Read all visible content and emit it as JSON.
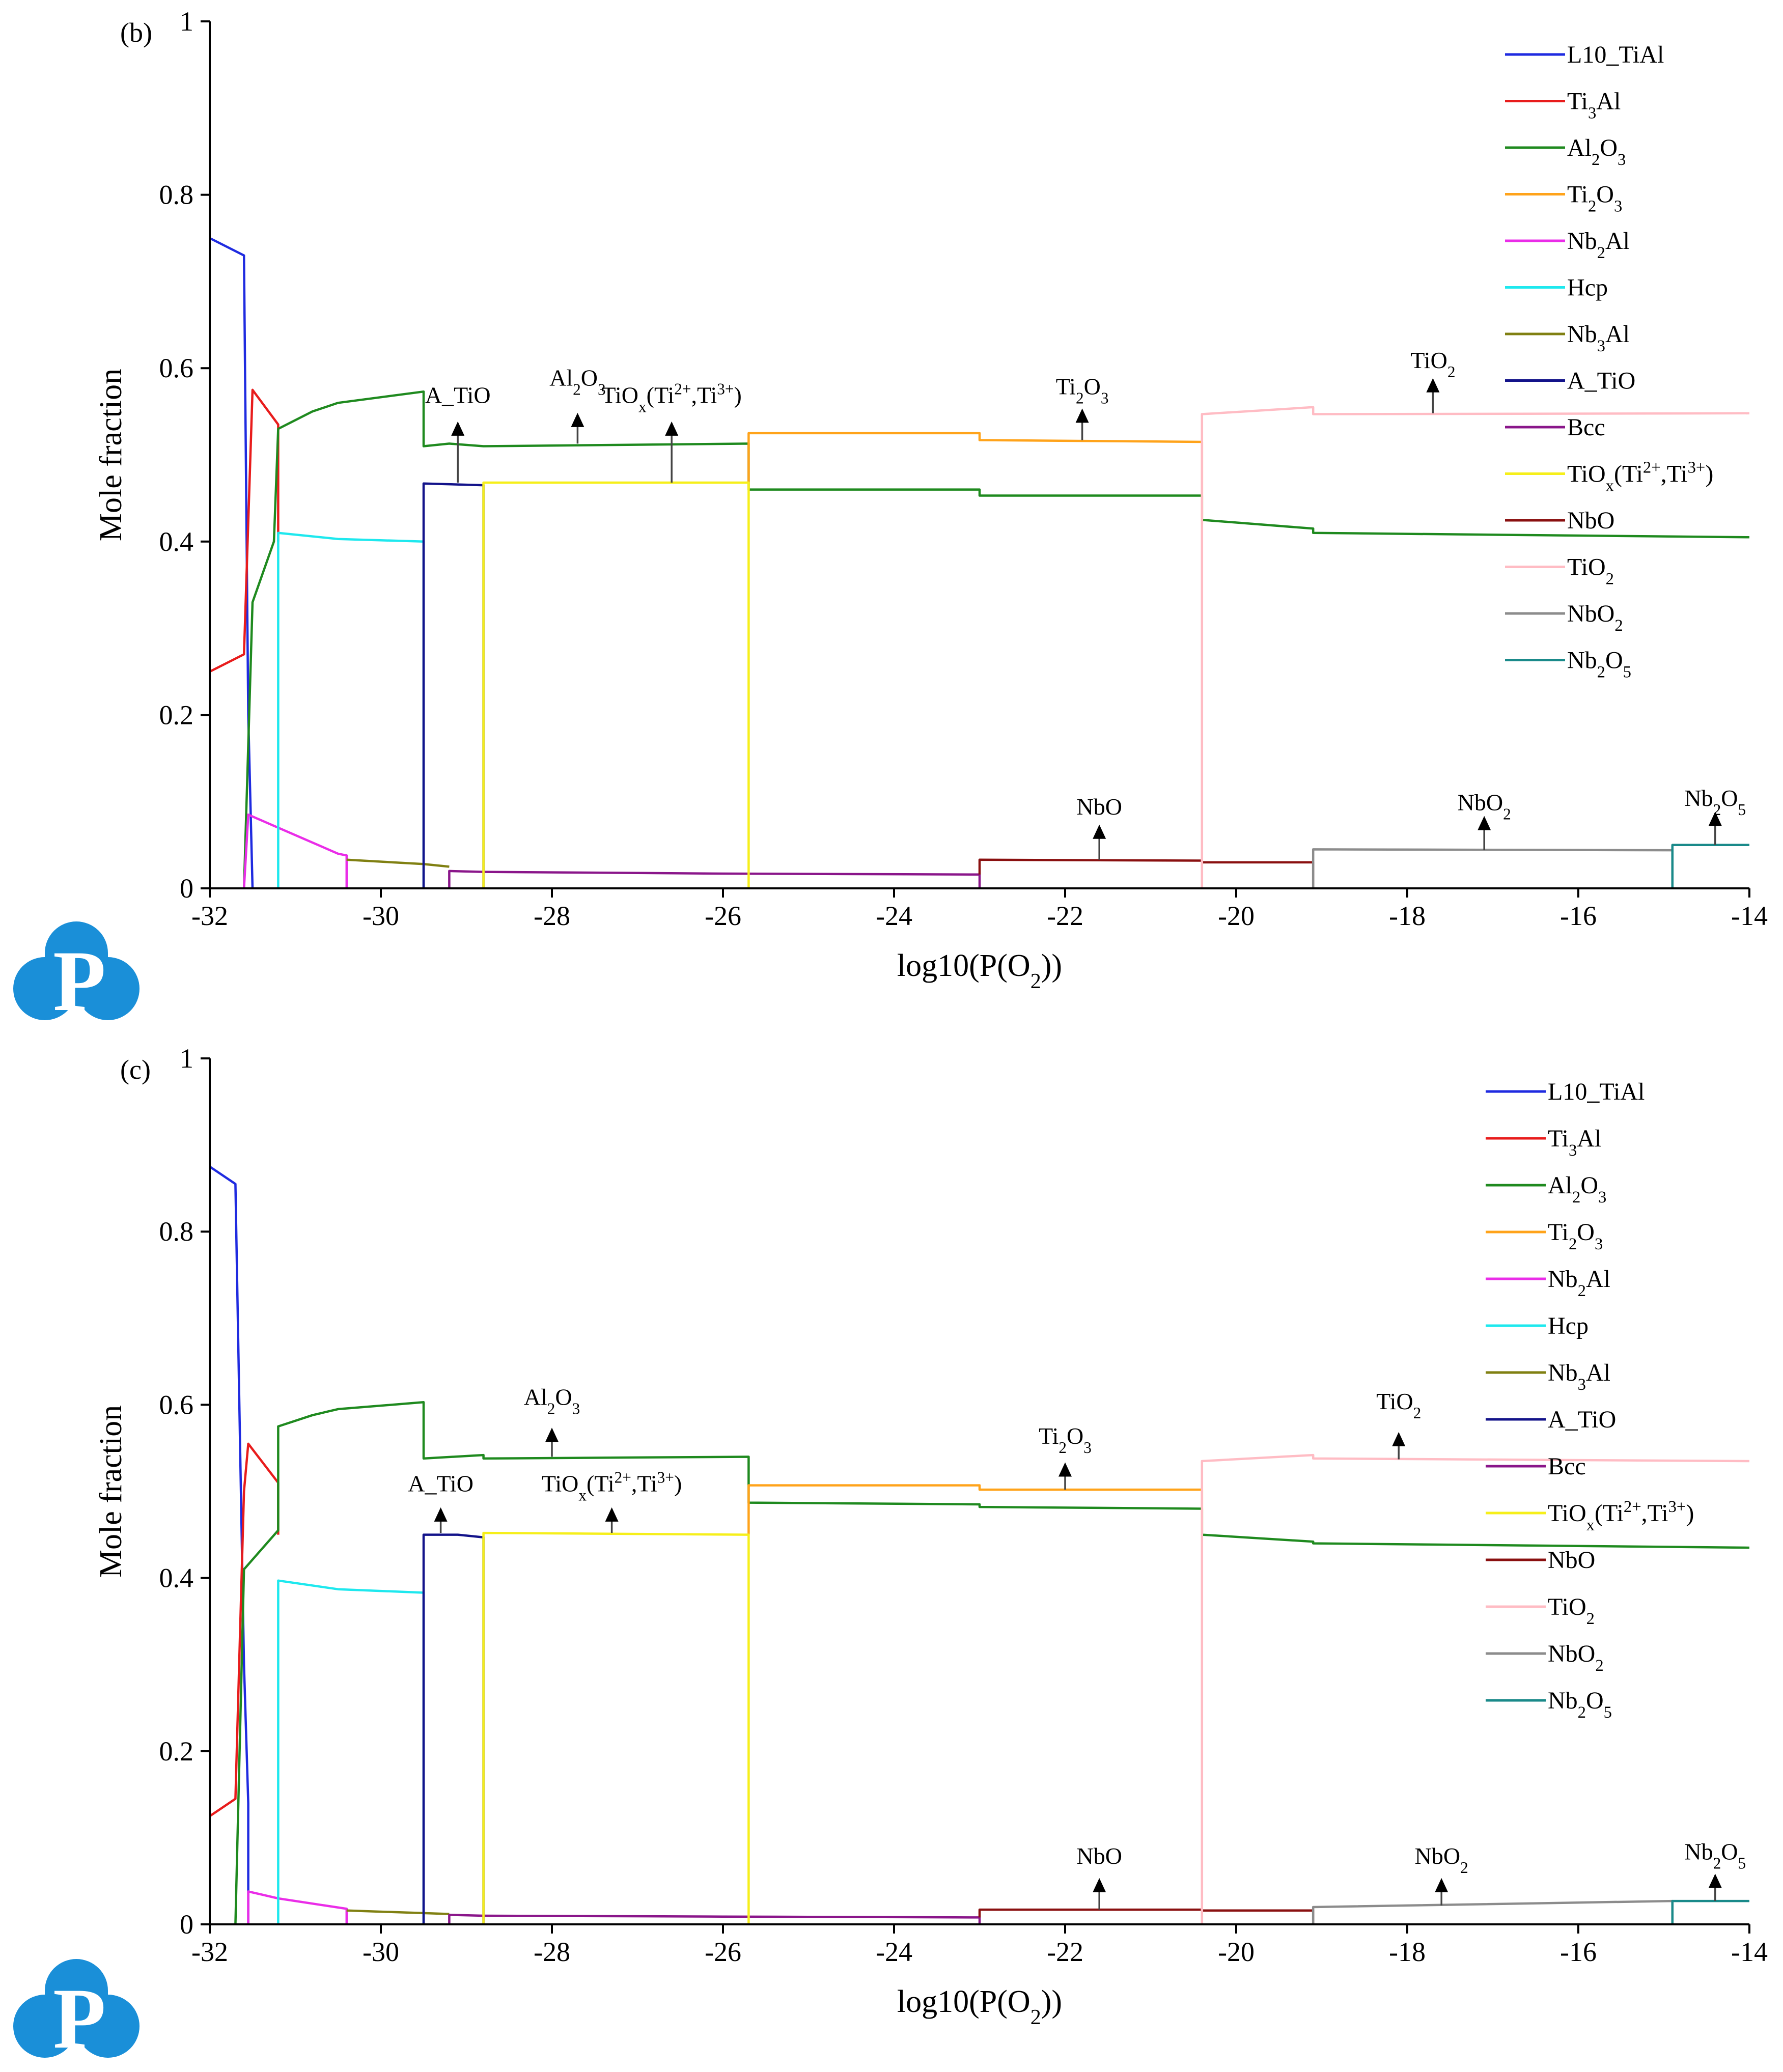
{
  "chart_data": [
    {
      "type": "line",
      "panel_label": "(b)",
      "xlabel": "log10(P(O₂))",
      "ylabel": "Mole fraction",
      "xlim": [
        -32,
        -14
      ],
      "ylim": [
        0,
        1
      ],
      "xticks": [
        "-32",
        "-30",
        "-28",
        "-26",
        "-24",
        "-22",
        "-20",
        "-18",
        "-16",
        "-14"
      ],
      "yticks": [
        "0",
        "0.2",
        "0.4",
        "0.6",
        "0.8",
        "1"
      ],
      "legend_position": "top-right",
      "series": [
        {
          "name": "L10_TiAl",
          "color": "#1f2be0",
          "points": [
            [
              -32,
              0.75
            ],
            [
              -31.6,
              0.73
            ],
            [
              -31.55,
              0.2
            ],
            [
              -31.5,
              0
            ]
          ]
        },
        {
          "name": "Ti₃Al",
          "color": "#e81c1c",
          "points": [
            [
              -32,
              0.25
            ],
            [
              -31.6,
              0.27
            ],
            [
              -31.5,
              0.575
            ],
            [
              -31.2,
              0.535
            ],
            [
              -31.2,
              0.4
            ]
          ]
        },
        {
          "name": "Al₂O₃",
          "color": "#1f8a1f",
          "points": [
            [
              -31.6,
              0
            ],
            [
              -31.5,
              0.33
            ],
            [
              -31.25,
              0.4
            ],
            [
              -31.2,
              0.53
            ],
            [
              -30.8,
              0.55
            ],
            [
              -30.5,
              0.56
            ],
            [
              -29.5,
              0.573
            ],
            [
              -29.5,
              0.51
            ],
            [
              -29.2,
              0.513
            ],
            [
              -28.8,
              0.51
            ],
            [
              -25.7,
              0.513
            ],
            [
              -25.7,
              0.46
            ],
            [
              -23,
              0.46
            ],
            [
              -23,
              0.453
            ],
            [
              -20.4,
              0.453
            ],
            [
              -20.4,
              0.425
            ],
            [
              -19.1,
              0.415
            ],
            [
              -19.1,
              0.41
            ],
            [
              -14,
              0.405
            ]
          ]
        },
        {
          "name": "Ti₂O₃",
          "color": "#ffa31a",
          "points": [
            [
              -25.7,
              0.46
            ],
            [
              -25.7,
              0.525
            ],
            [
              -23,
              0.525
            ],
            [
              -23,
              0.517
            ],
            [
              -20.4,
              0.515
            ],
            [
              -20.4,
              0.42
            ]
          ]
        },
        {
          "name": "Nb₂Al",
          "color": "#ea2de8",
          "points": [
            [
              -31.6,
              0
            ],
            [
              -31.55,
              0.085
            ],
            [
              -31.2,
              0.07
            ],
            [
              -30.5,
              0.04
            ],
            [
              -30.4,
              0.038
            ],
            [
              -30.4,
              0
            ]
          ]
        },
        {
          "name": "Hcp",
          "color": "#1ee8ee",
          "points": [
            [
              -31.2,
              0
            ],
            [
              -31.2,
              0.41
            ],
            [
              -30.5,
              0.403
            ],
            [
              -29.5,
              0.4
            ],
            [
              -29.5,
              0
            ]
          ]
        },
        {
          "name": "Nb₃Al",
          "color": "#808012",
          "points": [
            [
              -30.4,
              0.033
            ],
            [
              -29.5,
              0.028
            ],
            [
              -29.2,
              0.025
            ]
          ]
        },
        {
          "name": "A_TiO",
          "color": "#13138a",
          "points": [
            [
              -29.5,
              0
            ],
            [
              -29.5,
              0.467
            ],
            [
              -28.8,
              0.465
            ],
            [
              -28.8,
              0
            ]
          ]
        },
        {
          "name": "Bcc",
          "color": "#8a168a",
          "points": [
            [
              -29.2,
              0
            ],
            [
              -29.2,
              0.02
            ],
            [
              -28.8,
              0.019
            ],
            [
              -26,
              0.017
            ],
            [
              -23,
              0.016
            ],
            [
              -23,
              0
            ]
          ]
        },
        {
          "name": "TiOₓ(Ti²⁺,Ti³⁺)",
          "color": "#f6ef1a",
          "points": [
            [
              -28.8,
              0
            ],
            [
              -28.8,
              0.468
            ],
            [
              -25.7,
              0.468
            ],
            [
              -25.7,
              0
            ]
          ]
        },
        {
          "name": "NbO",
          "color": "#8a1010",
          "points": [
            [
              -23,
              0.016
            ],
            [
              -23,
              0.033
            ],
            [
              -20.4,
              0.032
            ],
            [
              -20.4,
              0.03
            ],
            [
              -19.1,
              0.03
            ],
            [
              -19.1,
              0
            ]
          ]
        },
        {
          "name": "TiO₂",
          "color": "#ffbcc4",
          "points": [
            [
              -20.4,
              0
            ],
            [
              -20.4,
              0.547
            ],
            [
              -19.1,
              0.555
            ],
            [
              -19.1,
              0.547
            ],
            [
              -14,
              0.548
            ]
          ]
        },
        {
          "name": "NbO₂",
          "color": "#8c8c8c",
          "points": [
            [
              -19.1,
              0
            ],
            [
              -19.1,
              0.045
            ],
            [
              -14.9,
              0.044
            ],
            [
              -14.9,
              0
            ]
          ]
        },
        {
          "name": "Nb₂O₅",
          "color": "#1a8a8a",
          "points": [
            [
              -14.9,
              0
            ],
            [
              -14.9,
              0.05
            ],
            [
              -14,
              0.05
            ]
          ]
        }
      ],
      "annotations": [
        {
          "text": "A_TiO",
          "x": -29.1,
          "y": 0.56,
          "arrow_from": 0.468,
          "arrow_to": 0.535
        },
        {
          "text": "Al₂O₃",
          "x": -27.7,
          "y": 0.58,
          "arrow_from": 0.513,
          "arrow_to": 0.545
        },
        {
          "text": "TiOₓ(Ti²⁺,Ti³⁺)",
          "x": -26.6,
          "y": 0.56,
          "arrow_from": 0.468,
          "arrow_to": 0.535
        },
        {
          "text": "Ti₂O₃",
          "x": -21.8,
          "y": 0.57,
          "arrow_from": 0.517,
          "arrow_to": 0.55
        },
        {
          "text": "TiO₂",
          "x": -17.7,
          "y": 0.6,
          "arrow_from": 0.548,
          "arrow_to": 0.585
        },
        {
          "text": "NbO",
          "x": -21.6,
          "y": 0.085,
          "arrow_from": 0.033,
          "arrow_to": 0.07
        },
        {
          "text": "NbO₂",
          "x": -17.1,
          "y": 0.09,
          "arrow_from": 0.044,
          "arrow_to": 0.08
        },
        {
          "text": "Nb₂O₅",
          "x": -14.4,
          "y": 0.095,
          "arrow_from": 0.05,
          "arrow_to": 0.085
        }
      ]
    },
    {
      "type": "line",
      "panel_label": "(c)",
      "xlabel": "log10(P(O₂))",
      "ylabel": "Mole fraction",
      "xlim": [
        -32,
        -14
      ],
      "ylim": [
        0,
        1
      ],
      "xticks": [
        "-32",
        "-30",
        "-28",
        "-26",
        "-24",
        "-22",
        "-20",
        "-18",
        "-16",
        "-14"
      ],
      "yticks": [
        "0",
        "0.2",
        "0.4",
        "0.6",
        "0.8",
        "1"
      ],
      "legend_position": "top-right",
      "series": [
        {
          "name": "L10_TiAl",
          "color": "#1f2be0",
          "points": [
            [
              -32,
              0.875
            ],
            [
              -31.7,
              0.855
            ],
            [
              -31.6,
              0.3
            ],
            [
              -31.55,
              0.14
            ],
            [
              -31.55,
              0
            ]
          ]
        },
        {
          "name": "Ti₃Al",
          "color": "#e81c1c",
          "points": [
            [
              -32,
              0.125
            ],
            [
              -31.7,
              0.145
            ],
            [
              -31.6,
              0.5
            ],
            [
              -31.55,
              0.555
            ],
            [
              -31.2,
              0.51
            ],
            [
              -31.2,
              0.45
            ]
          ]
        },
        {
          "name": "Al₂O₃",
          "color": "#1f8a1f",
          "points": [
            [
              -31.7,
              0
            ],
            [
              -31.6,
              0.41
            ],
            [
              -31.2,
              0.455
            ],
            [
              -31.2,
              0.575
            ],
            [
              -30.8,
              0.588
            ],
            [
              -30.5,
              0.595
            ],
            [
              -29.5,
              0.603
            ],
            [
              -29.5,
              0.538
            ],
            [
              -28.8,
              0.542
            ],
            [
              -28.8,
              0.538
            ],
            [
              -25.7,
              0.54
            ],
            [
              -25.7,
              0.487
            ],
            [
              -23,
              0.485
            ],
            [
              -23,
              0.482
            ],
            [
              -20.4,
              0.48
            ],
            [
              -20.4,
              0.45
            ],
            [
              -19.1,
              0.442
            ],
            [
              -19.1,
              0.44
            ],
            [
              -14,
              0.435
            ]
          ]
        },
        {
          "name": "Ti₂O₃",
          "color": "#ffa31a",
          "points": [
            [
              -25.7,
              0.45
            ],
            [
              -25.7,
              0.507
            ],
            [
              -23,
              0.507
            ],
            [
              -23,
              0.502
            ],
            [
              -20.4,
              0.502
            ],
            [
              -20.4,
              0.45
            ]
          ]
        },
        {
          "name": "Nb₂Al",
          "color": "#ea2de8",
          "points": [
            [
              -31.55,
              0
            ],
            [
              -31.55,
              0.038
            ],
            [
              -31.2,
              0.03
            ],
            [
              -30.4,
              0.018
            ],
            [
              -30.4,
              0
            ]
          ]
        },
        {
          "name": "Hcp",
          "color": "#1ee8ee",
          "points": [
            [
              -31.2,
              0
            ],
            [
              -31.2,
              0.397
            ],
            [
              -30.5,
              0.387
            ],
            [
              -29.5,
              0.383
            ],
            [
              -29.5,
              0
            ]
          ]
        },
        {
          "name": "Nb₃Al",
          "color": "#808012",
          "points": [
            [
              -30.4,
              0.016
            ],
            [
              -29.5,
              0.013
            ],
            [
              -29.2,
              0.012
            ]
          ]
        },
        {
          "name": "A_TiO",
          "color": "#13138a",
          "points": [
            [
              -29.5,
              0
            ],
            [
              -29.5,
              0.45
            ],
            [
              -29.1,
              0.45
            ],
            [
              -28.8,
              0.447
            ],
            [
              -28.8,
              0
            ]
          ]
        },
        {
          "name": "Bcc",
          "color": "#8a168a",
          "points": [
            [
              -29.2,
              0
            ],
            [
              -29.2,
              0.011
            ],
            [
              -28.8,
              0.01
            ],
            [
              -26,
              0.009
            ],
            [
              -23,
              0.008
            ],
            [
              -23,
              0
            ]
          ]
        },
        {
          "name": "TiOₓ(Ti²⁺,Ti³⁺)",
          "color": "#f6ef1a",
          "points": [
            [
              -28.8,
              0
            ],
            [
              -28.8,
              0.452
            ],
            [
              -25.7,
              0.45
            ],
            [
              -25.7,
              0
            ]
          ]
        },
        {
          "name": "NbO",
          "color": "#8a1010",
          "points": [
            [
              -23,
              0.008
            ],
            [
              -23,
              0.017
            ],
            [
              -20.4,
              0.017
            ],
            [
              -20.4,
              0.016
            ],
            [
              -19.1,
              0.016
            ],
            [
              -19.1,
              0
            ]
          ]
        },
        {
          "name": "TiO₂",
          "color": "#ffbcc4",
          "points": [
            [
              -20.4,
              0
            ],
            [
              -20.4,
              0.535
            ],
            [
              -19.1,
              0.542
            ],
            [
              -19.1,
              0.538
            ],
            [
              -14,
              0.535
            ]
          ]
        },
        {
          "name": "NbO₂",
          "color": "#8c8c8c",
          "points": [
            [
              -19.1,
              0
            ],
            [
              -19.1,
              0.02
            ],
            [
              -14.9,
              0.027
            ],
            [
              -14.9,
              0
            ]
          ]
        },
        {
          "name": "Nb₂O₅",
          "color": "#1a8a8a",
          "points": [
            [
              -14.9,
              0
            ],
            [
              -14.9,
              0.027
            ],
            [
              -14,
              0.027
            ]
          ]
        }
      ],
      "annotations": [
        {
          "text": "A_TiO",
          "x": -29.3,
          "y": 0.5,
          "arrow_from": 0.452,
          "arrow_to": 0.478
        },
        {
          "text": "Al₂O₃",
          "x": -28.0,
          "y": 0.6,
          "arrow_from": 0.54,
          "arrow_to": 0.57
        },
        {
          "text": "TiOₓ(Ti²⁺,Ti³⁺)",
          "x": -27.3,
          "y": 0.5,
          "arrow_from": 0.452,
          "arrow_to": 0.478
        },
        {
          "text": "Ti₂O₃",
          "x": -22.0,
          "y": 0.555,
          "arrow_from": 0.502,
          "arrow_to": 0.53
        },
        {
          "text": "TiO₂",
          "x": -18.1,
          "y": 0.595,
          "arrow_from": 0.537,
          "arrow_to": 0.565
        },
        {
          "text": "NbO",
          "x": -21.6,
          "y": 0.07,
          "arrow_from": 0.017,
          "arrow_to": 0.05
        },
        {
          "text": "NbO₂",
          "x": -17.6,
          "y": 0.07,
          "arrow_from": 0.022,
          "arrow_to": 0.05
        },
        {
          "text": "Nb₂O₅",
          "x": -14.4,
          "y": 0.075,
          "arrow_from": 0.027,
          "arrow_to": 0.055
        }
      ]
    }
  ],
  "logo": {
    "text": "P",
    "color": "#1a8fd8"
  }
}
